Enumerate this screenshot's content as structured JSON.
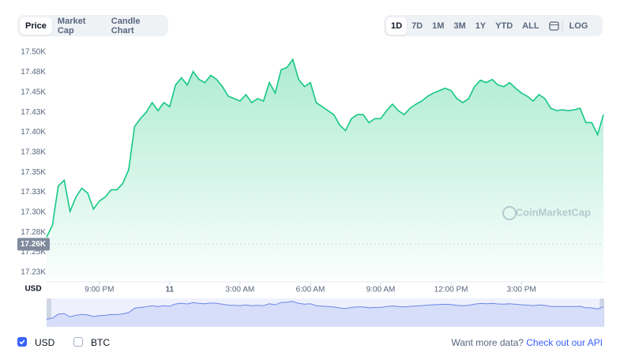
{
  "tabs": [
    "Price",
    "Market Cap",
    "Candle Chart"
  ],
  "ranges": [
    "1D",
    "7D",
    "1M",
    "3M",
    "1Y",
    "YTD",
    "ALL"
  ],
  "log_label": "LOG",
  "other_toggle": "BTC",
  "api_prompt": {
    "text": "Want more data?",
    "link": "Check out our API"
  },
  "chart_data": {
    "type": "area",
    "watermark": "CoinMarketCap",
    "categories": [
      null,
      null,
      null,
      null,
      null,
      null,
      null,
      null,
      null,
      "9:00 PM",
      null,
      null,
      null,
      null,
      null,
      null,
      null,
      null,
      null,
      null,
      null,
      "11",
      null,
      null,
      null,
      null,
      null,
      null,
      null,
      null,
      null,
      null,
      null,
      "3:00 AM",
      null,
      null,
      null,
      null,
      null,
      null,
      null,
      null,
      null,
      null,
      null,
      "6:00 AM",
      null,
      null,
      null,
      null,
      null,
      null,
      null,
      null,
      null,
      null,
      null,
      "9:00 AM",
      null,
      null,
      null,
      null,
      null,
      null,
      null,
      null,
      null,
      null,
      null,
      "12:00 PM",
      null,
      null,
      null,
      null,
      null,
      null,
      null,
      null,
      null,
      null,
      null,
      "3:00 PM",
      null,
      null,
      null,
      null,
      null,
      null,
      null,
      null,
      null,
      null,
      null,
      null,
      null,
      null
    ],
    "series": [
      {
        "name": "USD",
        "color": "#16c784",
        "values": [
          17269,
          17284,
          17333,
          17340,
          17301,
          17319,
          17330,
          17324,
          17304,
          17314,
          17319,
          17328,
          17328,
          17336,
          17353,
          17407,
          17417,
          17425,
          17437,
          17427,
          17437,
          17432,
          17459,
          17468,
          17459,
          17476,
          17466,
          17462,
          17471,
          17466,
          17457,
          17445,
          17442,
          17439,
          17447,
          17437,
          17442,
          17439,
          17462,
          17449,
          17478,
          17481,
          17491,
          17466,
          17457,
          17462,
          17437,
          17432,
          17427,
          17422,
          17409,
          17402,
          17417,
          17422,
          17422,
          17412,
          17417,
          17417,
          17427,
          17435,
          17427,
          17422,
          17430,
          17435,
          17439,
          17445,
          17449,
          17452,
          17455,
          17452,
          17442,
          17437,
          17442,
          17457,
          17465,
          17462,
          17466,
          17459,
          17457,
          17462,
          17455,
          17449,
          17445,
          17439,
          17447,
          17442,
          17430,
          17427,
          17428,
          17427,
          17428,
          17430,
          17412,
          17412,
          17397,
          17422
        ]
      }
    ],
    "reference": {
      "value": 17260,
      "label": "17.26K"
    },
    "ylim": [
      17215,
      17508
    ],
    "yticks": [
      {
        "value": 17500,
        "label": "17.50K"
      },
      {
        "value": 17475,
        "label": "17.48K"
      },
      {
        "value": 17450,
        "label": "17.45K"
      },
      {
        "value": 17425,
        "label": "17.43K"
      },
      {
        "value": 17400,
        "label": "17.40K"
      },
      {
        "value": 17375,
        "label": "17.38K"
      },
      {
        "value": 17350,
        "label": "17.35K"
      },
      {
        "value": 17325,
        "label": "17.33K"
      },
      {
        "value": 17300,
        "label": "17.30K"
      },
      {
        "value": 17275,
        "label": "17.28K"
      },
      {
        "value": 17250,
        "label": "17.25K"
      },
      {
        "value": 17225,
        "label": "17.23K"
      }
    ],
    "grid": false
  }
}
